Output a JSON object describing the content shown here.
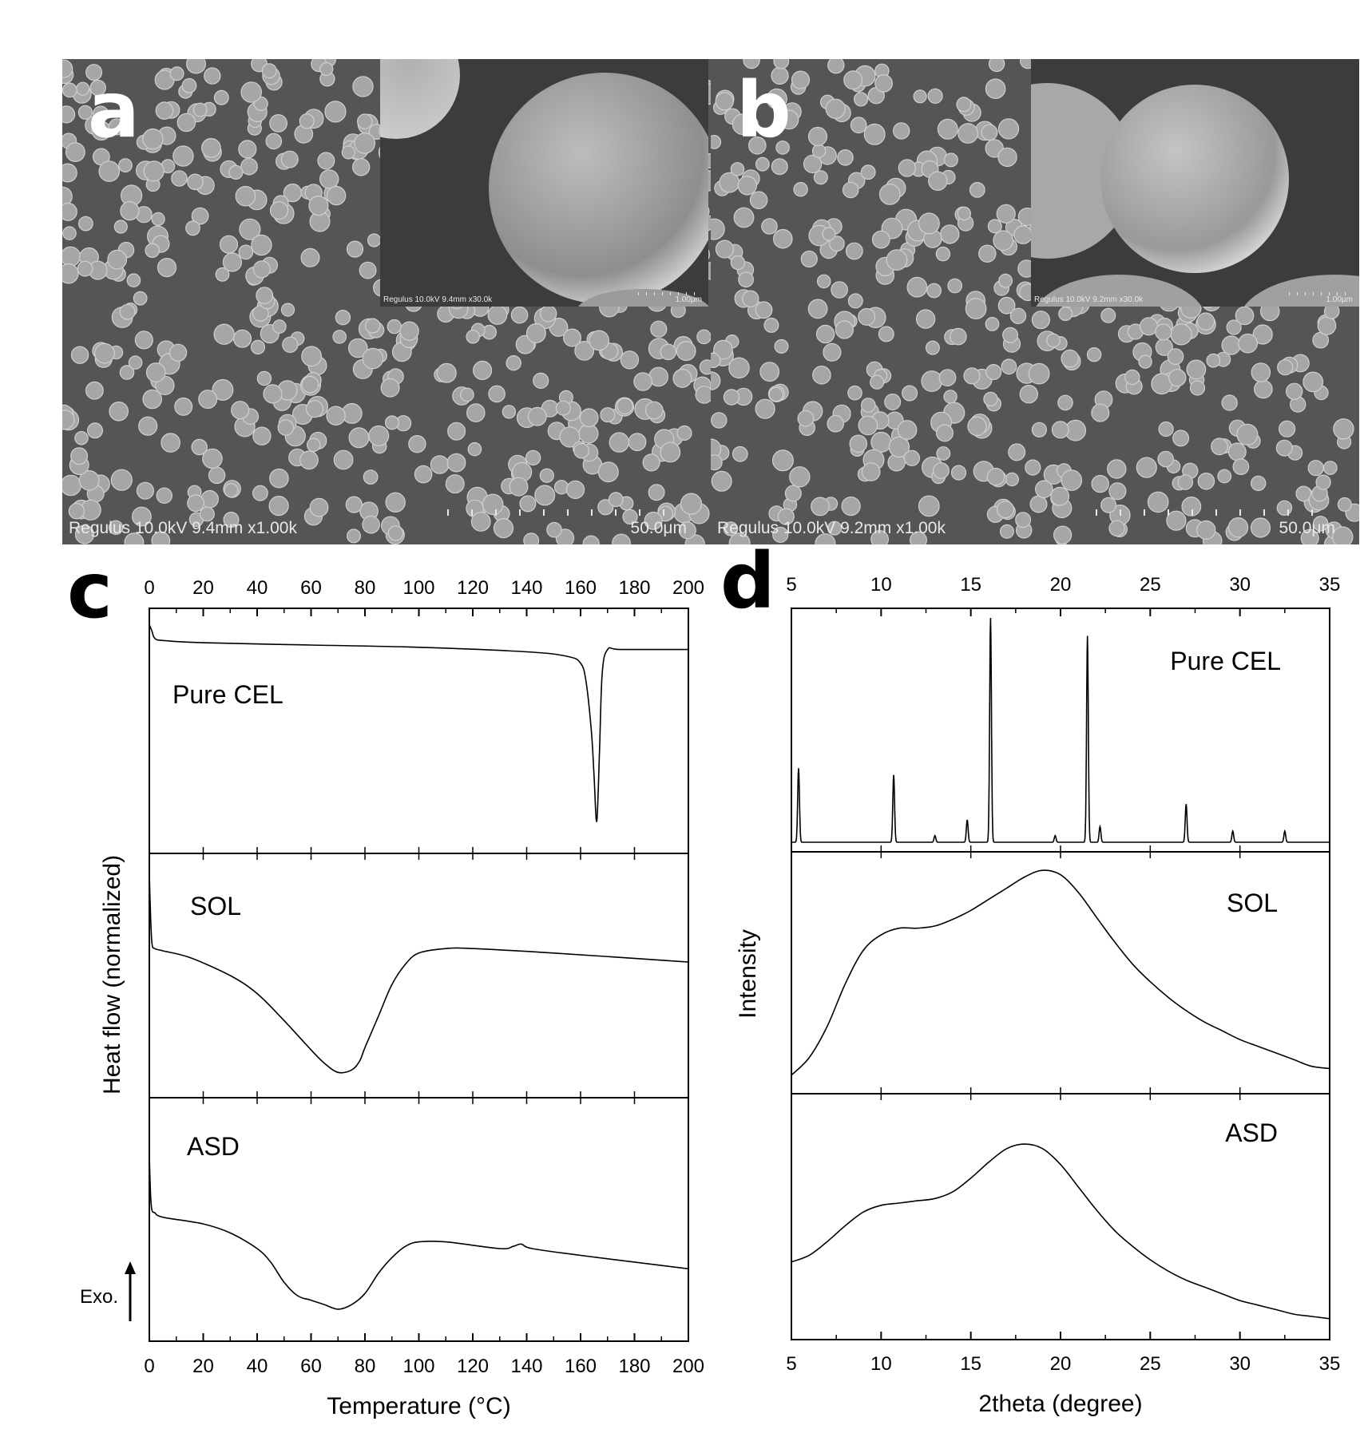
{
  "panels": {
    "a": {
      "letter": "a",
      "caption": "Regulus 10.0kV 9.4mm x1.00k",
      "scale": "50.0μm",
      "inset_caption": "Regulus 10.0kV 9.4mm x30.0k",
      "inset_scale": "1.00μm"
    },
    "b": {
      "letter": "b",
      "caption": "Regulus 10.0kV 9.2mm x1.00k",
      "scale": "50.0μm",
      "inset_caption": "Regulus 10.0kV 9.2mm x30.0k",
      "inset_scale": "1.00μm"
    },
    "c": {
      "letter": "c"
    },
    "d": {
      "letter": "d"
    }
  },
  "chart_data": [
    {
      "type": "line",
      "panel": "c",
      "xlabel": "Temperature (°C)",
      "ylabel": "Heat flow (normalized)",
      "xlim": [
        0,
        200
      ],
      "x_ticks": [
        0,
        20,
        40,
        60,
        80,
        100,
        120,
        140,
        160,
        180,
        200
      ],
      "annotation": "Exo.",
      "grid": false,
      "series": [
        {
          "name": "Pure CEL",
          "x": [
            0,
            1,
            2,
            5,
            20,
            60,
            100,
            140,
            155,
            160,
            162,
            164,
            165,
            166,
            167,
            168,
            170,
            175,
            200
          ],
          "y": [
            0.97,
            0.94,
            0.91,
            0.9,
            0.89,
            0.88,
            0.87,
            0.85,
            0.83,
            0.8,
            0.72,
            0.5,
            0.3,
            0.1,
            0.4,
            0.75,
            0.86,
            0.86,
            0.86
          ]
        },
        {
          "name": "SOL",
          "x": [
            0,
            0.5,
            1,
            2,
            5,
            15,
            30,
            40,
            50,
            60,
            65,
            70,
            75,
            78,
            80,
            85,
            90,
            95,
            100,
            110,
            120,
            150,
            200
          ],
          "y": [
            0.95,
            0.75,
            0.64,
            0.62,
            0.61,
            0.58,
            0.5,
            0.42,
            0.3,
            0.17,
            0.11,
            0.07,
            0.08,
            0.12,
            0.18,
            0.32,
            0.46,
            0.55,
            0.6,
            0.62,
            0.62,
            0.6,
            0.56
          ]
        },
        {
          "name": "ASD",
          "x": [
            0,
            0.5,
            1,
            2,
            5,
            20,
            30,
            40,
            45,
            50,
            55,
            60,
            65,
            70,
            75,
            80,
            85,
            90,
            95,
            100,
            110,
            130,
            135,
            138,
            142,
            160,
            200
          ],
          "y": [
            0.78,
            0.6,
            0.54,
            0.53,
            0.51,
            0.48,
            0.44,
            0.37,
            0.31,
            0.22,
            0.16,
            0.14,
            0.12,
            0.1,
            0.12,
            0.17,
            0.26,
            0.33,
            0.38,
            0.4,
            0.4,
            0.37,
            0.38,
            0.39,
            0.37,
            0.34,
            0.28
          ]
        }
      ]
    },
    {
      "type": "line",
      "panel": "d",
      "xlabel": "2theta (degree)",
      "ylabel": "Intensity",
      "xlim": [
        5,
        35
      ],
      "x_ticks": [
        5,
        10,
        15,
        20,
        25,
        30,
        35
      ],
      "grid": false,
      "series": [
        {
          "name": "Pure CEL",
          "baseline": 0.0,
          "peaks": [
            {
              "x": 5.4,
              "height": 0.33
            },
            {
              "x": 10.7,
              "height": 0.3
            },
            {
              "x": 13.0,
              "height": 0.03
            },
            {
              "x": 14.8,
              "height": 0.1
            },
            {
              "x": 16.1,
              "height": 1.0
            },
            {
              "x": 19.7,
              "height": 0.03
            },
            {
              "x": 21.5,
              "height": 0.92
            },
            {
              "x": 22.2,
              "height": 0.07
            },
            {
              "x": 27.0,
              "height": 0.17
            },
            {
              "x": 29.6,
              "height": 0.05
            },
            {
              "x": 32.5,
              "height": 0.05
            }
          ]
        },
        {
          "name": "SOL",
          "x": [
            5,
            6,
            7,
            8,
            9,
            10,
            11,
            12,
            13,
            14,
            15,
            16,
            17,
            18,
            19,
            20,
            21,
            22,
            23,
            24,
            25,
            26,
            27,
            28,
            29,
            30,
            31,
            32,
            33,
            34,
            35
          ],
          "y": [
            0.04,
            0.12,
            0.26,
            0.45,
            0.6,
            0.67,
            0.7,
            0.7,
            0.71,
            0.74,
            0.78,
            0.83,
            0.88,
            0.93,
            0.96,
            0.94,
            0.86,
            0.75,
            0.64,
            0.54,
            0.46,
            0.39,
            0.33,
            0.28,
            0.24,
            0.2,
            0.17,
            0.14,
            0.11,
            0.08,
            0.07
          ]
        },
        {
          "name": "ASD",
          "x": [
            5,
            6,
            7,
            8,
            9,
            10,
            11,
            12,
            13,
            14,
            15,
            16,
            17,
            18,
            19,
            20,
            21,
            22,
            23,
            24,
            25,
            26,
            27,
            28,
            29,
            30,
            31,
            32,
            33,
            34,
            35
          ],
          "y": [
            0.3,
            0.33,
            0.39,
            0.46,
            0.52,
            0.55,
            0.56,
            0.57,
            0.58,
            0.61,
            0.67,
            0.74,
            0.8,
            0.82,
            0.8,
            0.73,
            0.63,
            0.53,
            0.44,
            0.37,
            0.31,
            0.26,
            0.22,
            0.19,
            0.16,
            0.13,
            0.11,
            0.09,
            0.07,
            0.06,
            0.05
          ]
        }
      ]
    }
  ]
}
